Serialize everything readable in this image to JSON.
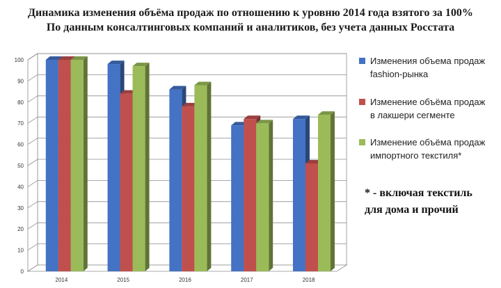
{
  "title_line1": "Динамика изменения объёма продаж по отношению к уровню 2014 года взятого за 100%",
  "title_line2": "По данным консалтинговых компаний и аналитиков, без учета данных Росстата",
  "note": "* - включая текстиль\nдля дома и прочий",
  "chart_data": {
    "type": "bar",
    "categories": [
      "2014",
      "2015",
      "2016",
      "2017",
      "2018"
    ],
    "series": [
      {
        "name": "Изменения объема продаж\nfashion-рынка",
        "color": "#4472C4",
        "values": [
          100,
          98,
          86,
          69,
          72
        ]
      },
      {
        "name": "Изменение объёма продаж\nв лакшери сегменте",
        "color": "#C0504D",
        "values": [
          100,
          84,
          78,
          72,
          51
        ]
      },
      {
        "name": "Изменение объёма продаж\nимпортного текстиля*",
        "color": "#9BBB59",
        "values": [
          100,
          97,
          88,
          70,
          74
        ]
      }
    ],
    "yticks": [
      0,
      10,
      20,
      30,
      40,
      50,
      60,
      70,
      80,
      90,
      100
    ],
    "ylim": [
      0,
      100
    ],
    "grid": true,
    "legend": "right"
  }
}
